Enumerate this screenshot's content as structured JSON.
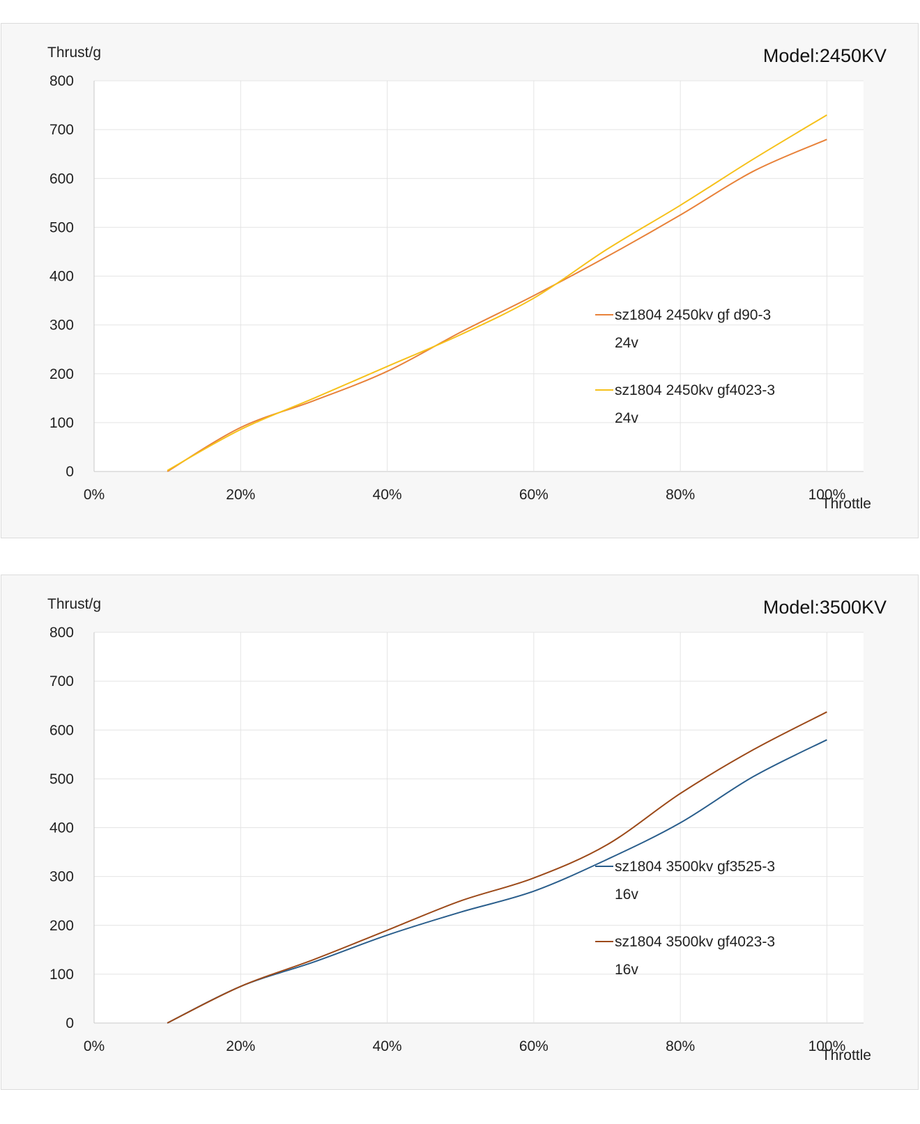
{
  "chart_data": [
    {
      "type": "line",
      "title": "Model:2450KV",
      "ylabel": "Thrust/g",
      "xlabel": "Throttle",
      "xlim": [
        0,
        100
      ],
      "ylim": [
        0,
        800
      ],
      "x_ticks": [
        "0%",
        "20%",
        "40%",
        "60%",
        "80%",
        "100%"
      ],
      "y_ticks": [
        "0",
        "100",
        "200",
        "300",
        "400",
        "500",
        "600",
        "700",
        "800"
      ],
      "grid": true,
      "legend_position": "right",
      "series": [
        {
          "name": "sz1804 2450kv gf d90-3",
          "name_line2": "24v",
          "color": "#E8823A",
          "x": [
            10,
            20,
            30,
            40,
            50,
            60,
            70,
            80,
            90,
            100
          ],
          "y": [
            0,
            90,
            145,
            205,
            285,
            360,
            440,
            525,
            615,
            680
          ]
        },
        {
          "name": "sz1804 2450kv gf4023-3",
          "name_line2": "24v",
          "color": "#F6C11B",
          "x": [
            10,
            20,
            30,
            40,
            50,
            60,
            70,
            80,
            90,
            100
          ],
          "y": [
            2,
            86,
            150,
            215,
            280,
            355,
            455,
            545,
            640,
            730
          ]
        }
      ]
    },
    {
      "type": "line",
      "title": "Model:3500KV",
      "ylabel": "Thrust/g",
      "xlabel": "Throttle",
      "xlim": [
        0,
        100
      ],
      "ylim": [
        0,
        800
      ],
      "x_ticks": [
        "0%",
        "20%",
        "40%",
        "60%",
        "80%",
        "100%"
      ],
      "y_ticks": [
        "0",
        "100",
        "200",
        "300",
        "400",
        "500",
        "600",
        "700",
        "800"
      ],
      "grid": true,
      "legend_position": "right",
      "series": [
        {
          "name": "sz1804 3500kv gf3525-3",
          "name_line2": "16v",
          "color": "#2A5E8C",
          "x": [
            10,
            20,
            30,
            40,
            50,
            60,
            70,
            80,
            90,
            100
          ],
          "y": [
            0,
            75,
            125,
            180,
            227,
            270,
            335,
            410,
            505,
            580
          ]
        },
        {
          "name": "sz1804 3500kv gf4023-3",
          "name_line2": "16v",
          "color": "#9C4A1A",
          "x": [
            10,
            20,
            30,
            40,
            50,
            60,
            70,
            80,
            90,
            100
          ],
          "y": [
            0,
            75,
            130,
            190,
            250,
            297,
            365,
            470,
            560,
            637
          ]
        }
      ]
    }
  ]
}
